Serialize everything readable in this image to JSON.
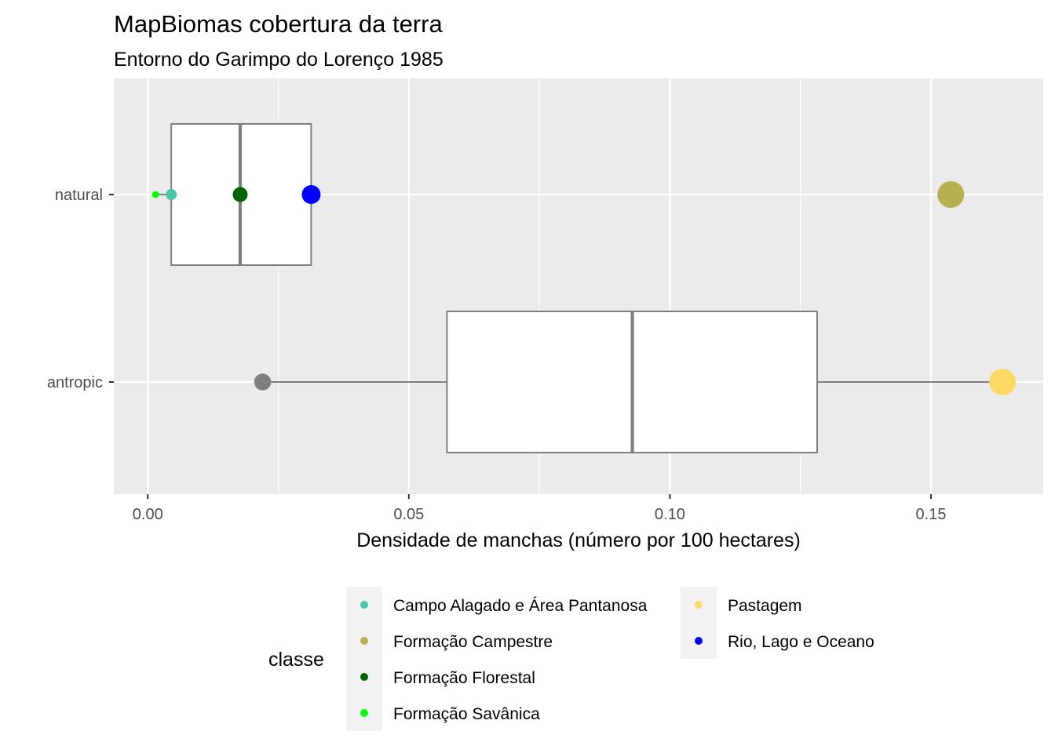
{
  "chart_data": {
    "type": "boxplot",
    "title": "MapBiomas cobertura da terra",
    "subtitle": "Entorno do Garimpo do Lorenço 1985",
    "xlabel": "Densidade de manchas (número por 100 hectares)",
    "ylabel": "",
    "xlim": [
      -0.0065,
      0.1715
    ],
    "x_ticks": [
      0.0,
      0.05,
      0.1,
      0.15
    ],
    "x_tick_labels": [
      "0.00",
      "0.05",
      "0.10",
      "0.15"
    ],
    "orientation": "horizontal",
    "grid": true,
    "categories": [
      "natural",
      "antropic"
    ],
    "boxes": [
      {
        "category": "natural",
        "whisker_low": 0.0015,
        "q1": 0.0045,
        "median": 0.0177,
        "q3": 0.0313,
        "whisker_high": 0.0313
      },
      {
        "category": "antropic",
        "whisker_low": 0.022,
        "q1": 0.0573,
        "median": 0.0928,
        "q3": 0.1282,
        "whisker_high": 0.1637
      }
    ],
    "points": [
      {
        "category": "natural",
        "classe": "Formação Savânica",
        "x": 0.0015,
        "size": 1
      },
      {
        "category": "natural",
        "classe": "Campo Alagado e Área Pantanosa",
        "x": 0.0045,
        "size": 2
      },
      {
        "category": "natural",
        "classe": "Formação Florestal",
        "x": 0.0177,
        "size": 3
      },
      {
        "category": "natural",
        "classe": "Rio, Lago e Oceano",
        "x": 0.0313,
        "size": 4
      },
      {
        "category": "natural",
        "classe": "Formação Campestre",
        "x": 0.1538,
        "size": 6
      },
      {
        "category": "antropic",
        "classe": null,
        "x": 0.022,
        "size": 3.5
      },
      {
        "category": "antropic",
        "classe": "Pastagem",
        "x": 0.1637,
        "size": 6
      }
    ],
    "legend": {
      "title": "classe",
      "placement": "bottom",
      "entries": [
        {
          "label": "Campo Alagado e Área Pantanosa",
          "color": "#48C8A8"
        },
        {
          "label": "Formação Campestre",
          "color": "#B8AF4F"
        },
        {
          "label": "Formação Florestal",
          "color": "#006400"
        },
        {
          "label": "Formação Savânica",
          "color": "#00FF00"
        },
        {
          "label": "Pastagem",
          "color": "#FFD966"
        },
        {
          "label": "Rio, Lago e Oceano",
          "color": "#0000FF"
        }
      ]
    },
    "colors": {
      "panel_background": "#EBEBEB",
      "grid": "#FFFFFF",
      "box_outline": "#7F7F7F",
      "unclassified_point": "#7F7F7F"
    }
  }
}
